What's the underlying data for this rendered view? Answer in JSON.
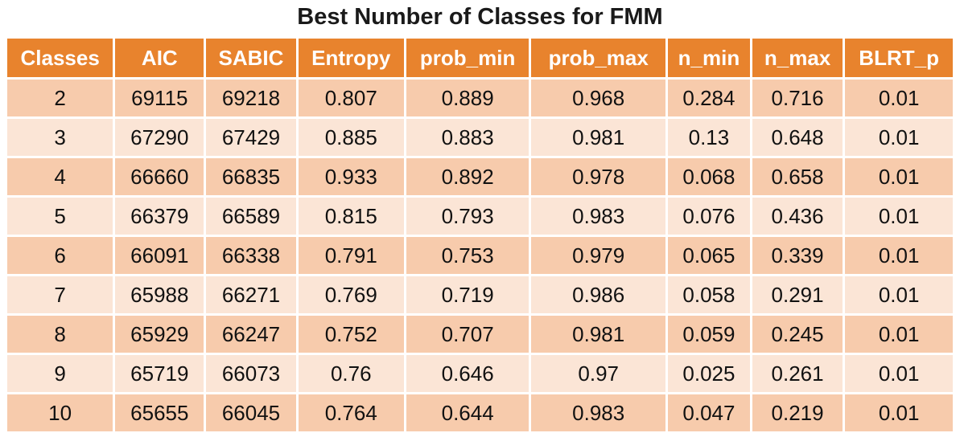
{
  "title": "Best Number of Classes for FMM",
  "colors": {
    "background": "#FFFFFF",
    "header_bg": "#E8832D",
    "header_text": "#FFFFFF",
    "band_dark": "#F7CBAC",
    "band_light": "#FBE5D6",
    "grid": "#FFFFFF",
    "body_text": "#111111",
    "title_text": "#1A1A1A"
  },
  "chart_data": {
    "type": "table",
    "title": "Best Number of Classes for FMM",
    "columns": [
      "Classes",
      "AIC",
      "SABIC",
      "Entropy",
      "prob_min",
      "prob_max",
      "n_min",
      "n_max",
      "BLRT_p"
    ],
    "rows": [
      [
        2,
        69115,
        69218,
        0.807,
        0.889,
        0.968,
        0.284,
        0.716,
        0.01
      ],
      [
        3,
        67290,
        67429,
        0.885,
        0.883,
        0.981,
        0.13,
        0.648,
        0.01
      ],
      [
        4,
        66660,
        66835,
        0.933,
        0.892,
        0.978,
        0.068,
        0.658,
        0.01
      ],
      [
        5,
        66379,
        66589,
        0.815,
        0.793,
        0.983,
        0.076,
        0.436,
        0.01
      ],
      [
        6,
        66091,
        66338,
        0.791,
        0.753,
        0.979,
        0.065,
        0.339,
        0.01
      ],
      [
        7,
        65988,
        66271,
        0.769,
        0.719,
        0.986,
        0.058,
        0.291,
        0.01
      ],
      [
        8,
        65929,
        66247,
        0.752,
        0.707,
        0.981,
        0.059,
        0.245,
        0.01
      ],
      [
        9,
        65719,
        66073,
        0.76,
        0.646,
        0.97,
        0.025,
        0.261,
        0.01
      ],
      [
        10,
        65655,
        66045,
        0.764,
        0.644,
        0.983,
        0.047,
        0.219,
        0.01
      ]
    ]
  }
}
